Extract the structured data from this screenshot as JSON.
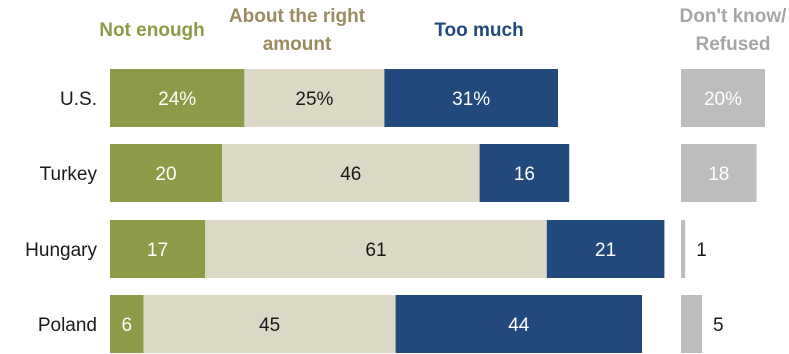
{
  "chart_data": {
    "type": "bar",
    "stacked": true,
    "orientation": "horizontal",
    "categories": [
      "U.S.",
      "Turkey",
      "Hungary",
      "Poland"
    ],
    "series": [
      {
        "name": "Not enough",
        "color": "#8c9b47",
        "values": [
          24,
          20,
          17,
          6
        ],
        "labels": [
          "24%",
          "20",
          "17",
          "6"
        ]
      },
      {
        "name": "About the right amount",
        "color": "#dcd8c6",
        "values": [
          25,
          46,
          61,
          45
        ],
        "labels": [
          "25%",
          "46",
          "61",
          "45"
        ]
      },
      {
        "name": "Too much",
        "color": "#22497c",
        "values": [
          31,
          16,
          21,
          44
        ],
        "labels": [
          "31%",
          "16",
          "21",
          "44"
        ]
      }
    ],
    "secondary_series": {
      "name": "Don't know/ Refused",
      "color": "#bdbdbd",
      "values": [
        20,
        18,
        1,
        5
      ],
      "labels": [
        "20%",
        "18",
        "1",
        "5"
      ]
    },
    "headers": {
      "not_enough": "Not enough",
      "about_right_line1": "About the right",
      "about_right_line2": "amount",
      "too_much": "Too much",
      "dk_line1": "Don't know/",
      "dk_line2": "Refused"
    },
    "header_colors": {
      "not_enough": "#8c9b47",
      "about_right": "#9a8c5f",
      "too_much": "#22497c",
      "dk": "#a6a6a6"
    },
    "label_colors": {
      "on_dark": "#ffffff",
      "on_light": "#1a1a1a"
    },
    "title": "",
    "xlabel": "",
    "ylabel": ""
  }
}
